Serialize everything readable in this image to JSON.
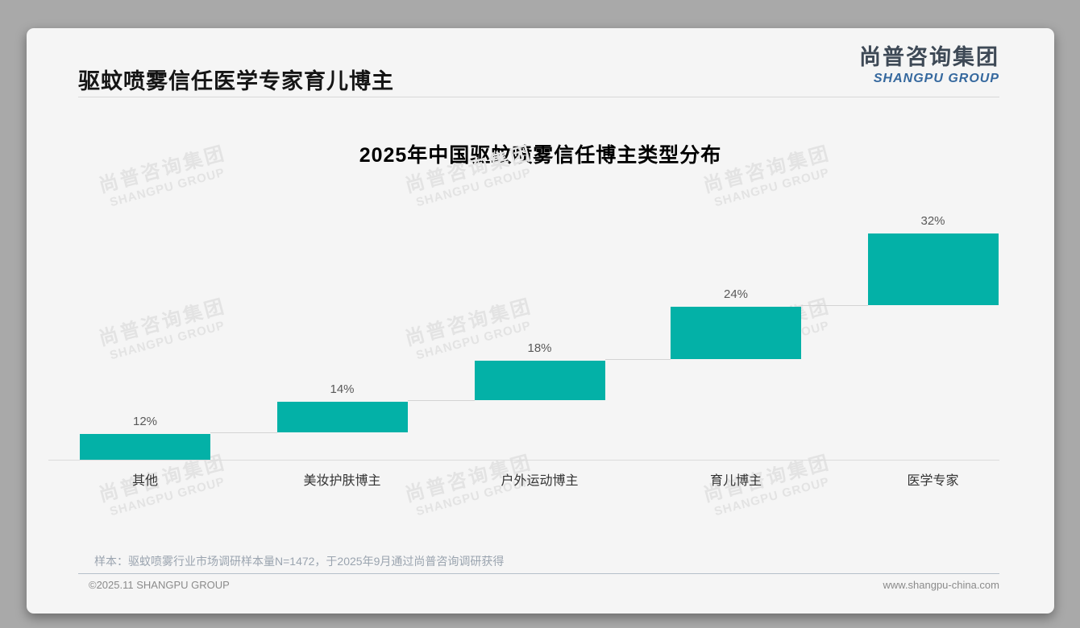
{
  "page": {
    "title": "驱蚊喷雾信任医学专家育儿博主",
    "logo": {
      "cn": "尚普咨询集团",
      "en": "SHANGPU GROUP"
    },
    "watermark": {
      "cn": "尚普咨询集团",
      "en": "SHANGPU GROUP"
    },
    "note": "样本：驱蚊喷雾行业市场调研样本量N=1472，于2025年9月通过尚普咨询调研获得",
    "footer": {
      "left": "©2025.11 SHANGPU GROUP",
      "right": "www.shangpu-china.com"
    }
  },
  "chart_data": {
    "type": "bar",
    "subtype": "waterfall-steps",
    "title": "2025年中国驱蚊喷雾信任博主类型分布",
    "categories": [
      "其他",
      "美妆护肤博主",
      "户外运动博主",
      "育儿博主",
      "医学专家"
    ],
    "values": [
      12,
      14,
      18,
      24,
      32
    ],
    "value_labels": [
      "12%",
      "14%",
      "18%",
      "24%",
      "32%"
    ],
    "unit": "%",
    "ylim": [
      0,
      100
    ],
    "grid": false,
    "legend": false,
    "bar_color": "#03b1a7",
    "connector_color": "#d4d4d4",
    "baseline_color": "#dcdcdc"
  },
  "colors": {
    "page_bg": "#a9a9a9",
    "card_bg": "#f5f5f5",
    "accent_teal": "#03b1a7",
    "logo_blue": "#35689e",
    "logo_dark": "#3e4956",
    "watermark": "#e3e3e3"
  }
}
